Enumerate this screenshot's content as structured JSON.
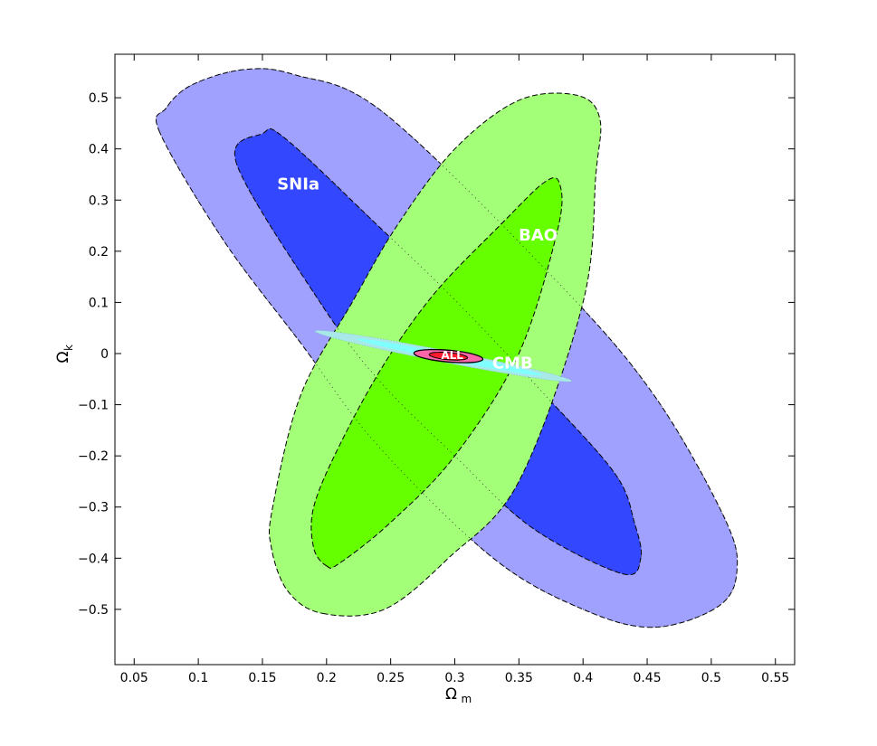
{
  "chart_data": {
    "type": "contour",
    "xlabel": "Ω",
    "xlabel_subscript": "m",
    "ylabel": "Ω",
    "ylabel_subscript": "k",
    "xlim": [
      0.035,
      0.565
    ],
    "ylim": [
      -0.608,
      0.585
    ],
    "grid": false,
    "x_ticks": [
      0.05,
      0.1,
      0.15,
      0.2,
      0.25,
      0.3,
      0.35,
      0.4,
      0.45,
      0.5,
      0.55
    ],
    "x_tick_labels": [
      "0.05",
      "0.1",
      "0.15",
      "0.2",
      "0.25",
      "0.3",
      "0.35",
      "0.4",
      "0.45",
      "0.5",
      "0.55"
    ],
    "y_ticks": [
      0.5,
      0.4,
      0.3,
      0.2,
      0.1,
      0,
      -0.1,
      -0.2,
      -0.3,
      -0.4,
      -0.5
    ],
    "y_tick_labels": [
      "0.5",
      "0.4",
      "0.3",
      "0.2",
      "0.1",
      "0",
      "−0.1",
      "−0.2",
      "−0.3",
      "−0.4",
      "−0.5"
    ],
    "series": [
      {
        "name": "SNIa",
        "label_at": [
          0.178,
          0.33
        ],
        "outer_color": "#a0a0ff",
        "inner_color": "#3347ff",
        "outer_contour": [
          [
            0.07,
            0.432
          ],
          [
            0.075,
            0.48
          ],
          [
            0.095,
            0.525
          ],
          [
            0.135,
            0.555
          ],
          [
            0.175,
            0.545
          ],
          [
            0.245,
            0.47
          ],
          [
            0.38,
            0.14
          ],
          [
            0.455,
            -0.08
          ],
          [
            0.51,
            -0.32
          ],
          [
            0.52,
            -0.425
          ],
          [
            0.505,
            -0.495
          ],
          [
            0.455,
            -0.535
          ],
          [
            0.4,
            -0.5
          ],
          [
            0.33,
            -0.4
          ],
          [
            0.24,
            -0.18
          ],
          [
            0.18,
            0.02
          ],
          [
            0.12,
            0.22
          ]
        ],
        "inner_contour": [
          [
            0.13,
            0.37
          ],
          [
            0.15,
            0.43
          ],
          [
            0.168,
            0.42
          ],
          [
            0.24,
            0.25
          ],
          [
            0.3,
            0.105
          ],
          [
            0.37,
            -0.08
          ],
          [
            0.425,
            -0.235
          ],
          [
            0.44,
            -0.33
          ],
          [
            0.445,
            -0.4
          ],
          [
            0.43,
            -0.43
          ],
          [
            0.36,
            -0.34
          ],
          [
            0.3,
            -0.2
          ],
          [
            0.24,
            -0.05
          ],
          [
            0.195,
            0.1
          ]
        ]
      },
      {
        "name": "BAO",
        "label_at": [
          0.365,
          0.23
        ],
        "outer_color": "#a4ff78",
        "inner_color": "#66ff00",
        "outer_contour": [
          [
            0.197,
            -0.508
          ],
          [
            0.245,
            -0.5
          ],
          [
            0.295,
            -0.4
          ],
          [
            0.35,
            -0.25
          ],
          [
            0.4,
            0.1
          ],
          [
            0.41,
            0.35
          ],
          [
            0.413,
            0.46
          ],
          [
            0.395,
            0.505
          ],
          [
            0.35,
            0.495
          ],
          [
            0.3,
            0.4
          ],
          [
            0.255,
            0.25
          ],
          [
            0.22,
            0.1
          ],
          [
            0.18,
            -0.08
          ],
          [
            0.158,
            -0.3
          ],
          [
            0.157,
            -0.38
          ],
          [
            0.17,
            -0.465
          ]
        ],
        "inner_contour": [
          [
            0.2,
            -0.415
          ],
          [
            0.21,
            -0.41
          ],
          [
            0.25,
            -0.33
          ],
          [
            0.3,
            -0.2
          ],
          [
            0.35,
            0.0
          ],
          [
            0.38,
            0.24
          ],
          [
            0.382,
            0.33
          ],
          [
            0.37,
            0.335
          ],
          [
            0.335,
            0.25
          ],
          [
            0.285,
            0.12
          ],
          [
            0.245,
            -0.02
          ],
          [
            0.21,
            -0.18
          ],
          [
            0.19,
            -0.3
          ],
          [
            0.19,
            -0.38
          ]
        ]
      },
      {
        "name": "CMB",
        "label_at": [
          0.345,
          -0.02
        ],
        "outer_color": "#a8e8e8",
        "inner_color": "#80ffff",
        "center": [
          0.291,
          -0.005
        ],
        "semi_axes": [
          0.102,
          0.0115
        ],
        "angle_deg": -11
      },
      {
        "name": "ALL",
        "label_at": [
          0.298,
          -0.004
        ],
        "outer_color": "#ff66aa",
        "inner_color": "#ff1a30",
        "center": [
          0.295,
          -0.005
        ],
        "semi_axes_outer": [
          0.027,
          0.0115
        ],
        "semi_axes_inner": [
          0.015,
          0.007
        ],
        "angle_deg": -5
      }
    ]
  }
}
